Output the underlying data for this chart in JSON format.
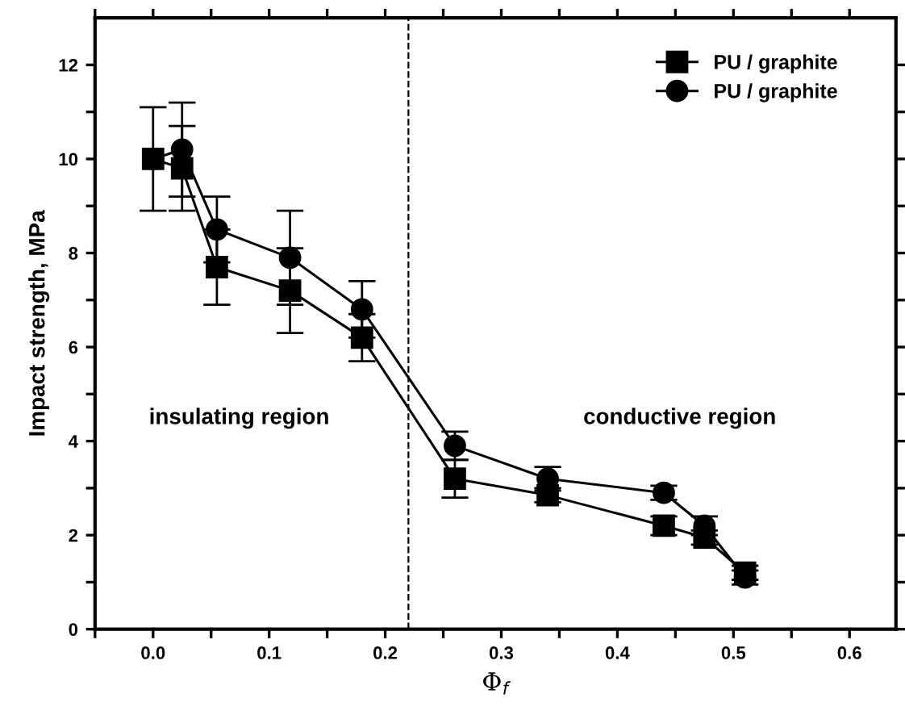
{
  "chart_data": {
    "type": "line",
    "xlabel": "Φ$_{f}$",
    "ylabel": "Impact strength, MPa",
    "xlim": [
      -0.05,
      0.64
    ],
    "ylim": [
      0,
      13
    ],
    "xticks": [
      {
        "value": -0.05,
        "label": null
      },
      {
        "value": 0,
        "label": "0.0"
      },
      {
        "value": 0.05,
        "label": null
      },
      0.1,
      {
        "value": 0.15,
        "label": null
      },
      0.2,
      {
        "value": 0.25,
        "label": null
      },
      0.3,
      {
        "value": 0.35,
        "label": null
      },
      0.4,
      {
        "value": 0.45,
        "label": null
      },
      0.5,
      {
        "value": 0.55,
        "label": null
      },
      0.6
    ],
    "yticks": [
      0,
      {
        "value": 1,
        "label": null
      },
      2,
      {
        "value": 3,
        "label": null
      },
      4,
      {
        "value": 5,
        "label": null
      },
      6,
      {
        "value": 7,
        "label": null
      },
      8,
      {
        "value": 9,
        "label": null
      },
      10,
      {
        "value": 11,
        "label": null
      },
      12
    ],
    "line_style": "solid",
    "grid": false,
    "legend": "top right",
    "series": [
      {
        "name": "PU / graphite",
        "color": "#000000",
        "marker": "square",
        "x": [
          0.0,
          0.025,
          0.055,
          0.118,
          0.18,
          0.26,
          0.34,
          0.44,
          0.475,
          0.51
        ],
        "values": [
          10.0,
          9.8,
          7.7,
          7.2,
          6.2,
          3.2,
          2.85,
          2.2,
          1.95,
          1.2
        ],
        "errors": [
          1.1,
          0.9,
          0.8,
          0.9,
          0.5,
          0.4,
          0.15,
          0.2,
          0.15,
          0.15
        ]
      },
      {
        "name": "PU / graphite",
        "color": "#000000",
        "marker": "circle",
        "x": [
          0.0,
          0.025,
          0.055,
          0.118,
          0.18,
          0.26,
          0.34,
          0.44,
          0.475,
          0.51
        ],
        "values": [
          10.0,
          10.2,
          8.5,
          7.9,
          6.8,
          3.9,
          3.2,
          2.9,
          2.2,
          1.1
        ],
        "errors": [
          null,
          1.0,
          0.7,
          1.0,
          0.6,
          0.3,
          0.25,
          0.15,
          0.2,
          0.15
        ]
      }
    ],
    "ref_lines": [
      {
        "axis": "x",
        "value": 0.22,
        "label": null,
        "color": "#000000",
        "line_style": "dashed"
      }
    ],
    "annotations": [
      "insulating region",
      "conductive region"
    ]
  }
}
